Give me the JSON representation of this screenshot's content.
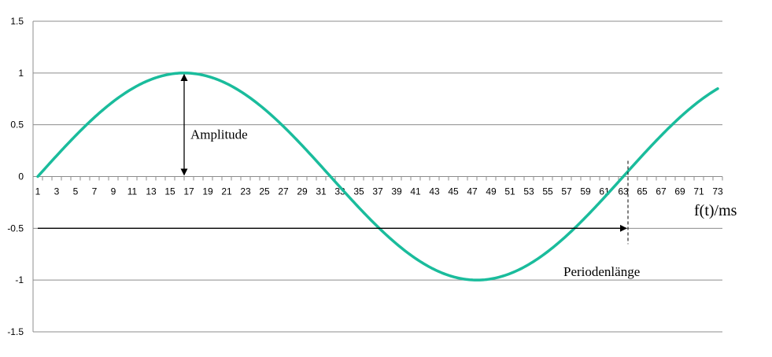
{
  "chart_data": {
    "type": "line",
    "title": "",
    "xlabel": "f(t)/ms",
    "ylabel": "",
    "x_categories": [
      1,
      3,
      5,
      7,
      9,
      11,
      13,
      15,
      17,
      19,
      21,
      23,
      25,
      27,
      29,
      31,
      33,
      35,
      37,
      39,
      41,
      43,
      45,
      47,
      49,
      51,
      53,
      55,
      57,
      59,
      61,
      63,
      65,
      67,
      69,
      71,
      73
    ],
    "ylim": [
      -1.5,
      1.5
    ],
    "y_ticks": [
      1.5,
      1,
      0.5,
      0,
      -0.5,
      -1,
      -1.5
    ],
    "grid": "horizontal",
    "legend": "none",
    "series": [
      {
        "function": "sine",
        "amplitude": 1,
        "period_ms": 62,
        "x_start": 1,
        "x_end": 73,
        "phase_start_x": 1,
        "color": "#1abc9c"
      }
    ],
    "annotations": {
      "amplitude_label": "Amplitude",
      "amplitude_at_x": 16.5,
      "period_label": "Periodenlänge",
      "period_start_x": 1,
      "period_end_x": 63,
      "period_at_y": -0.5
    }
  }
}
